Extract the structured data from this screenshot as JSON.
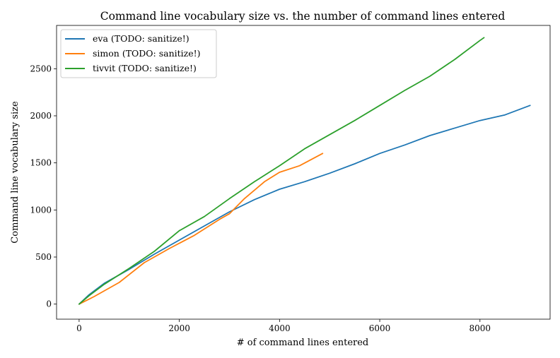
{
  "chart_data": {
    "type": "line",
    "title": "Command line vocabulary size vs. the number of command lines entered",
    "xlabel": "# of command lines entered",
    "ylabel": "Command line vocabulary size",
    "xlim": [
      -450,
      9400
    ],
    "ylim": [
      -160,
      2960
    ],
    "xticks": [
      0,
      2000,
      4000,
      6000,
      8000
    ],
    "yticks": [
      0,
      500,
      1000,
      1500,
      2000,
      2500
    ],
    "grid": false,
    "legend_position": "top-left",
    "series": [
      {
        "name": "eva (TODO: sanitize!)",
        "color": "#1f77b4",
        "x": [
          0,
          200,
          500,
          1000,
          1500,
          2000,
          2500,
          3000,
          3500,
          4000,
          4500,
          5000,
          5500,
          6000,
          6500,
          7000,
          7500,
          8000,
          8500,
          9000
        ],
        "y": [
          0,
          100,
          220,
          370,
          530,
          680,
          830,
          980,
          1110,
          1220,
          1300,
          1390,
          1490,
          1600,
          1690,
          1790,
          1870,
          1950,
          2010,
          2110
        ]
      },
      {
        "name": "simon (TODO: sanitize!)",
        "color": "#ff7f0e",
        "x": [
          0,
          300,
          800,
          1300,
          1800,
          2300,
          2800,
          3000,
          3300,
          3700,
          4000,
          4400,
          4860
        ],
        "y": [
          0,
          80,
          230,
          440,
          590,
          730,
          900,
          960,
          1120,
          1300,
          1400,
          1470,
          1600
        ]
      },
      {
        "name": "tivvit (TODO: sanitize!)",
        "color": "#2ca02c",
        "x": [
          0,
          200,
          500,
          1000,
          1500,
          2000,
          2500,
          3000,
          3500,
          4000,
          4500,
          5000,
          5500,
          6000,
          6500,
          7000,
          7500,
          8000,
          8080
        ],
        "y": [
          0,
          90,
          210,
          380,
          560,
          780,
          930,
          1120,
          1300,
          1470,
          1650,
          1800,
          1950,
          2110,
          2270,
          2420,
          2600,
          2800,
          2830
        ]
      }
    ]
  }
}
